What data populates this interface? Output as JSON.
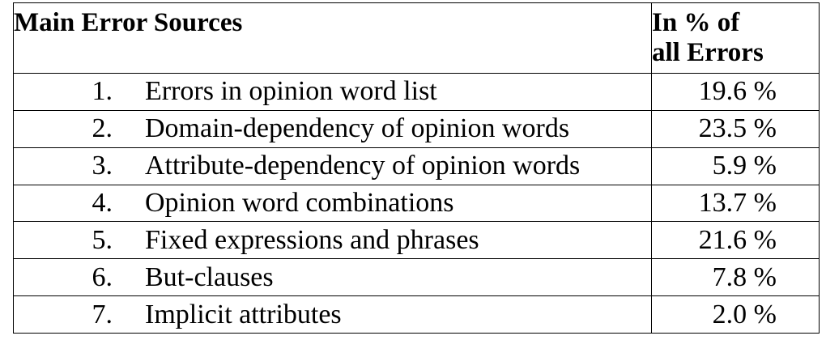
{
  "table": {
    "headers": {
      "source": "Main Error Sources",
      "percent_line1": "In %  of",
      "percent_line2": "all Errors"
    },
    "rows": [
      {
        "num": "1.",
        "label": "Errors in opinion word list",
        "percent": "19.6 %"
      },
      {
        "num": "2.",
        "label": "Domain-dependency of opinion words",
        "percent": "23.5 %"
      },
      {
        "num": "3.",
        "label": "Attribute-dependency of opinion words",
        "percent": "5.9 %"
      },
      {
        "num": "4.",
        "label": "Opinion word combinations",
        "percent": "13.7 %"
      },
      {
        "num": "5.",
        "label": "Fixed expressions and phrases",
        "percent": "21.6 %"
      },
      {
        "num": "6.",
        "label": "But-clauses",
        "percent": "7.8 %"
      },
      {
        "num": "7.",
        "label": "Implicit attributes",
        "percent": "2.0 %"
      }
    ]
  }
}
